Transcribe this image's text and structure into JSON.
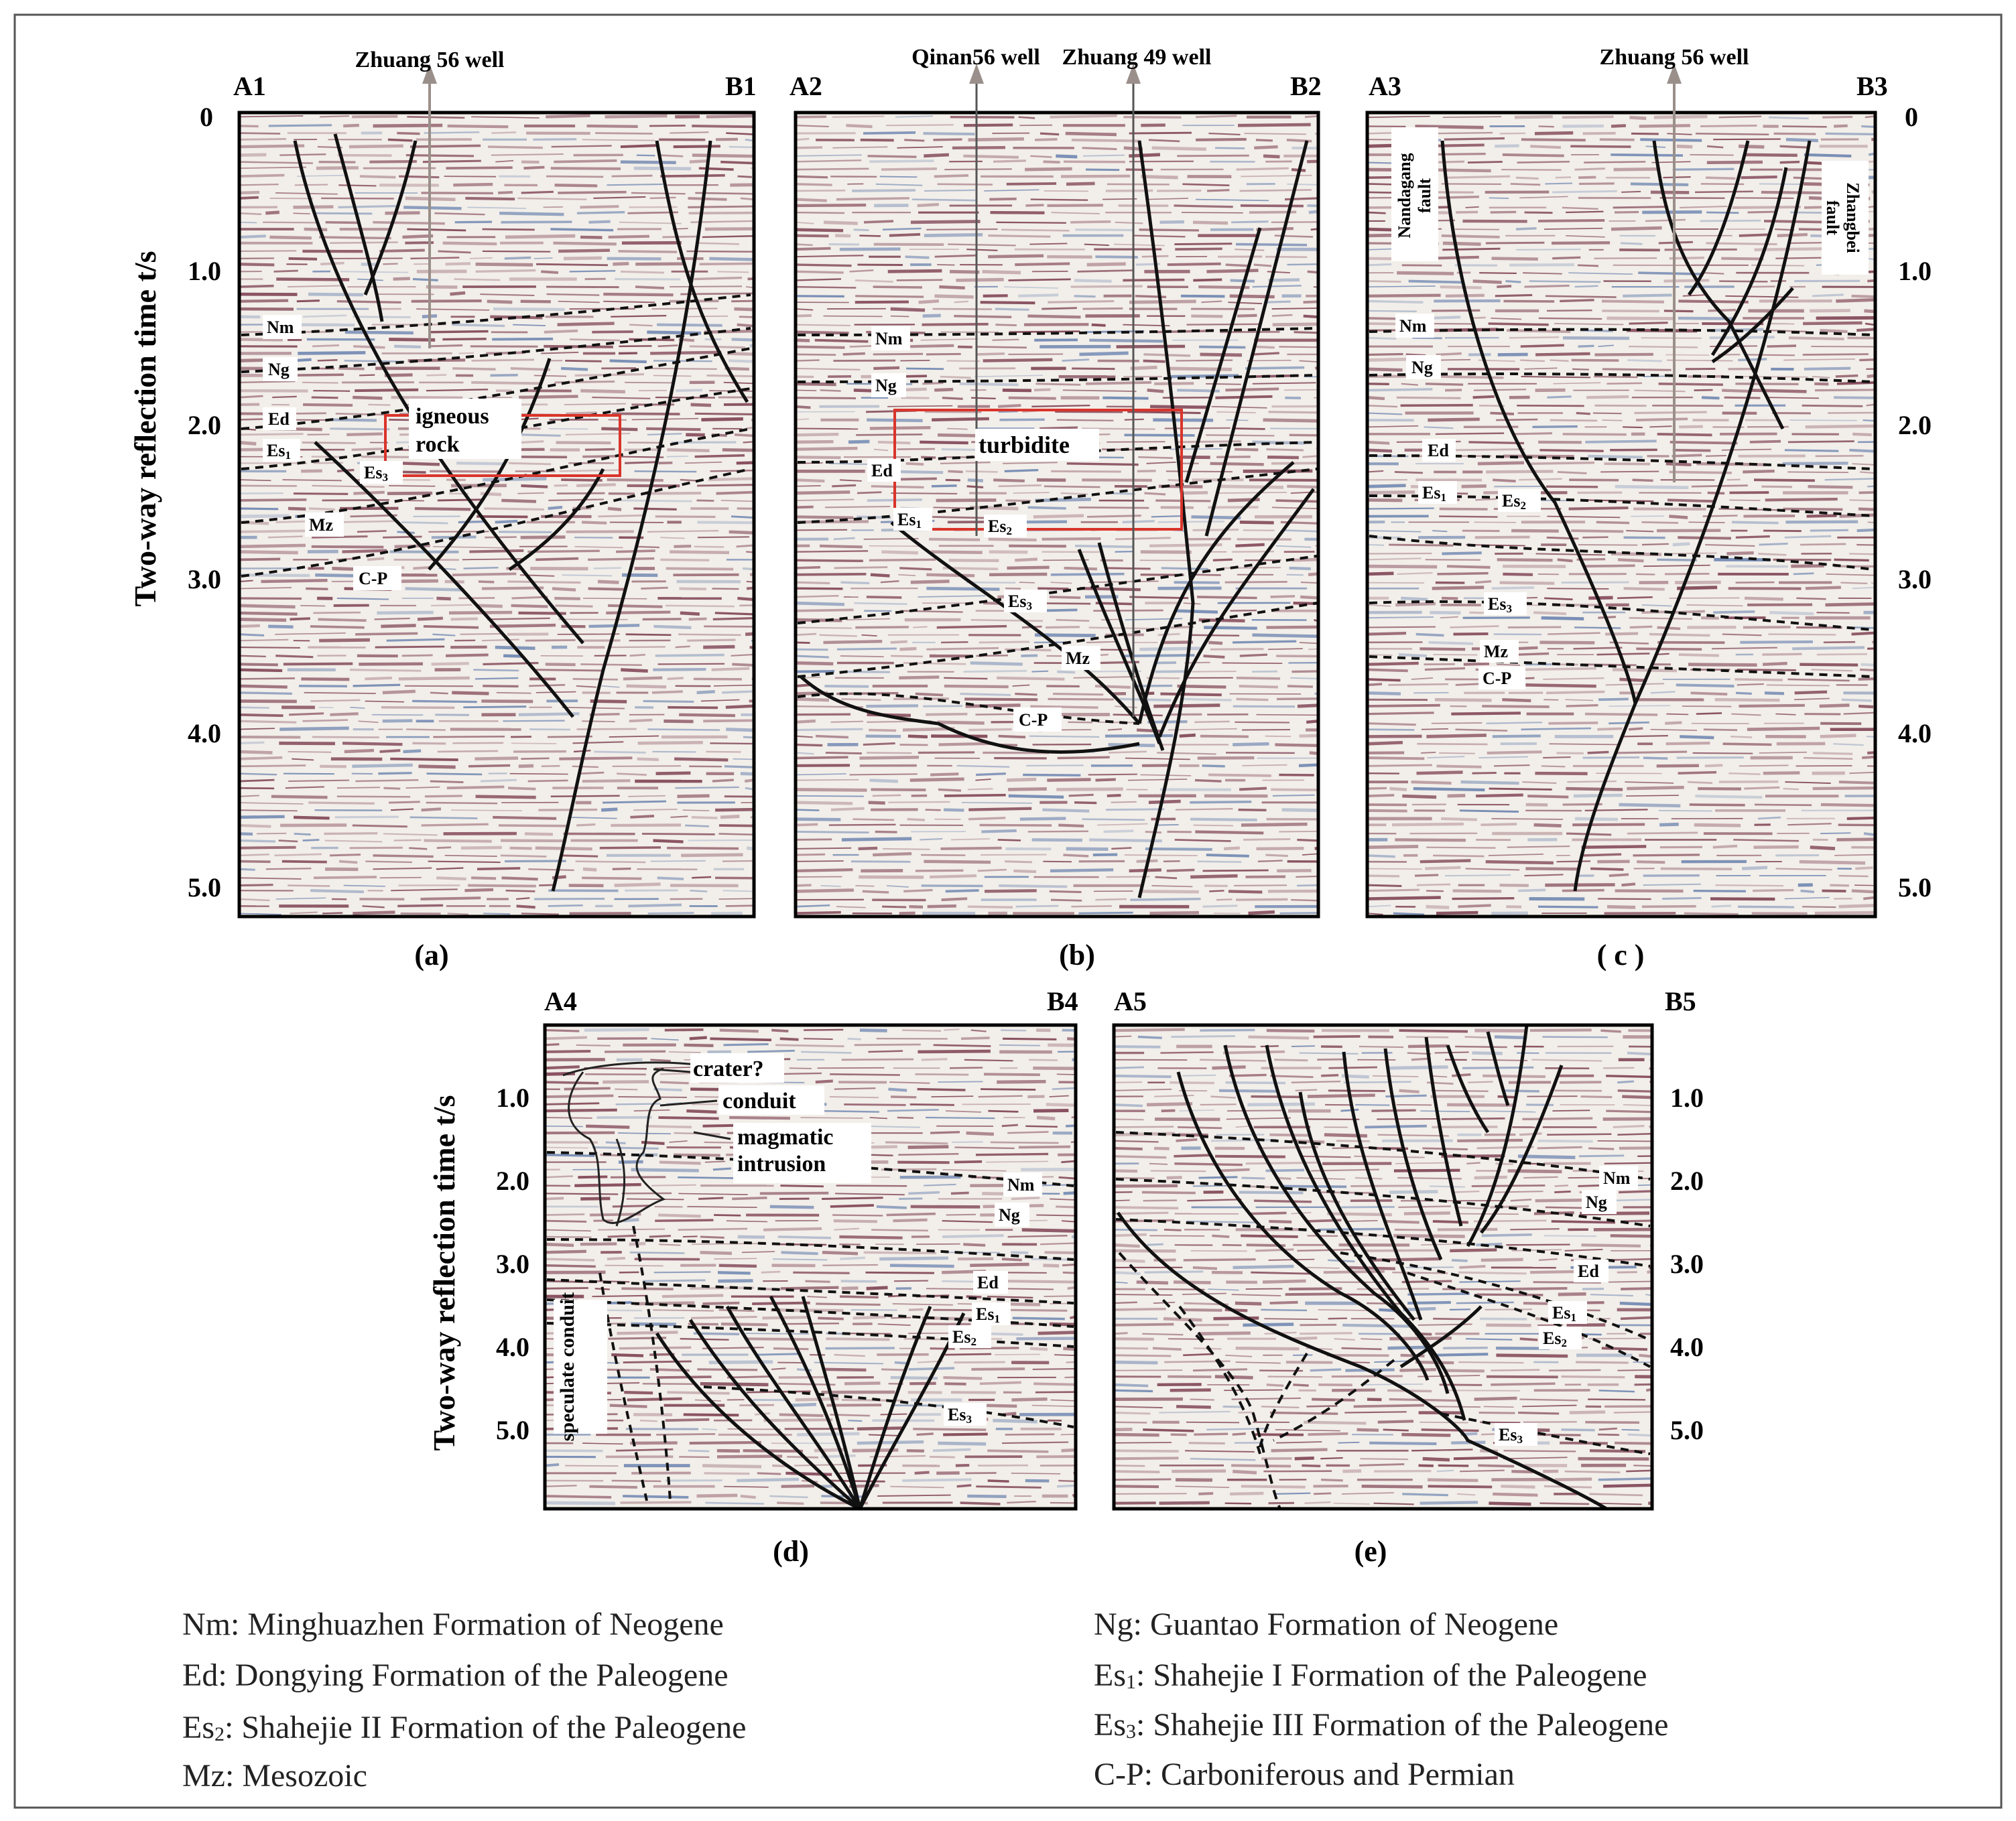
{
  "panels": {
    "a": {
      "caption": "(a)",
      "left_end": "A1",
      "right_end": "B1",
      "wells": [
        "Zhuang 56 well"
      ],
      "ticks": [
        "0",
        "1.0",
        "2.0",
        "3.0",
        "4.0",
        "5.0"
      ],
      "y_axis_label": "Two-way reflection time t/s",
      "layers": [
        "Nm",
        "Ng",
        "Ed",
        "Es1",
        "Es3",
        "Mz",
        "C-P"
      ],
      "annotation": "igneous rock"
    },
    "b": {
      "caption": "(b)",
      "left_end": "A2",
      "right_end": "B2",
      "wells": [
        "Qinan56 well",
        "Zhuang 49 well"
      ],
      "layers": [
        "Nm",
        "Ng",
        "Ed",
        "Es1",
        "Es2",
        "Es3",
        "Mz",
        "C-P"
      ],
      "annotation": "turbidite"
    },
    "c": {
      "caption": "( c )",
      "left_end": "A3",
      "right_end": "B3",
      "wells": [
        "Zhuang 56 well"
      ],
      "ticks": [
        "0",
        "1.0",
        "2.0",
        "3.0",
        "4.0",
        "5.0"
      ],
      "faults": [
        "Nandagang fault",
        "Zhangbei fault"
      ],
      "layers": [
        "Nm",
        "Ng",
        "Ed",
        "Es1",
        "Es2",
        "Es3",
        "Mz",
        "C-P"
      ]
    },
    "d": {
      "caption": "(d)",
      "left_end": "A4",
      "right_end": "B4",
      "ticks": [
        "1.0",
        "2.0",
        "3.0",
        "4.0",
        "5.0"
      ],
      "y_axis_label": "Two-way reflection time t/s",
      "layers": [
        "Nm",
        "Ng",
        "Ed",
        "Es1",
        "Es2",
        "Es3"
      ],
      "annotations": [
        "crater?",
        "conduit",
        "magmatic intrusion",
        "speculate conduit"
      ]
    },
    "e": {
      "caption": "(e)",
      "left_end": "A5",
      "right_end": "B5",
      "ticks": [
        "1.0",
        "2.0",
        "3.0",
        "4.0",
        "5.0"
      ],
      "layers": [
        "Nm",
        "Ng",
        "Ed",
        "Es1",
        "Es2",
        "Es3"
      ]
    }
  },
  "legend": [
    {
      "code": "Nm",
      "sub": "",
      "text": ": Minghuazhen Formation of Neogene"
    },
    {
      "code": "Ng",
      "sub": "",
      "text": ": Guantao Formation of Neogene"
    },
    {
      "code": "Ed",
      "sub": "",
      "text": ": Dongying Formation of the Paleogene"
    },
    {
      "code": "Es",
      "sub": "1",
      "text": ": Shahejie I Formation of the Paleogene"
    },
    {
      "code": "Es",
      "sub": "2",
      "text": ": Shahejie II Formation of the Paleogene"
    },
    {
      "code": "Es",
      "sub": "3",
      "text": ": Shahejie III Formation of the Paleogene"
    },
    {
      "code": "Mz",
      "sub": "",
      "text": ": Mesozoic"
    },
    {
      "code": "C-P",
      "sub": "",
      "text": ": Carboniferous and Permian"
    }
  ],
  "colors": {
    "frame": "#000000",
    "seis_dark": "#6e2a3e",
    "seis_blue": "#5a76a8",
    "box": "#d9342b"
  }
}
